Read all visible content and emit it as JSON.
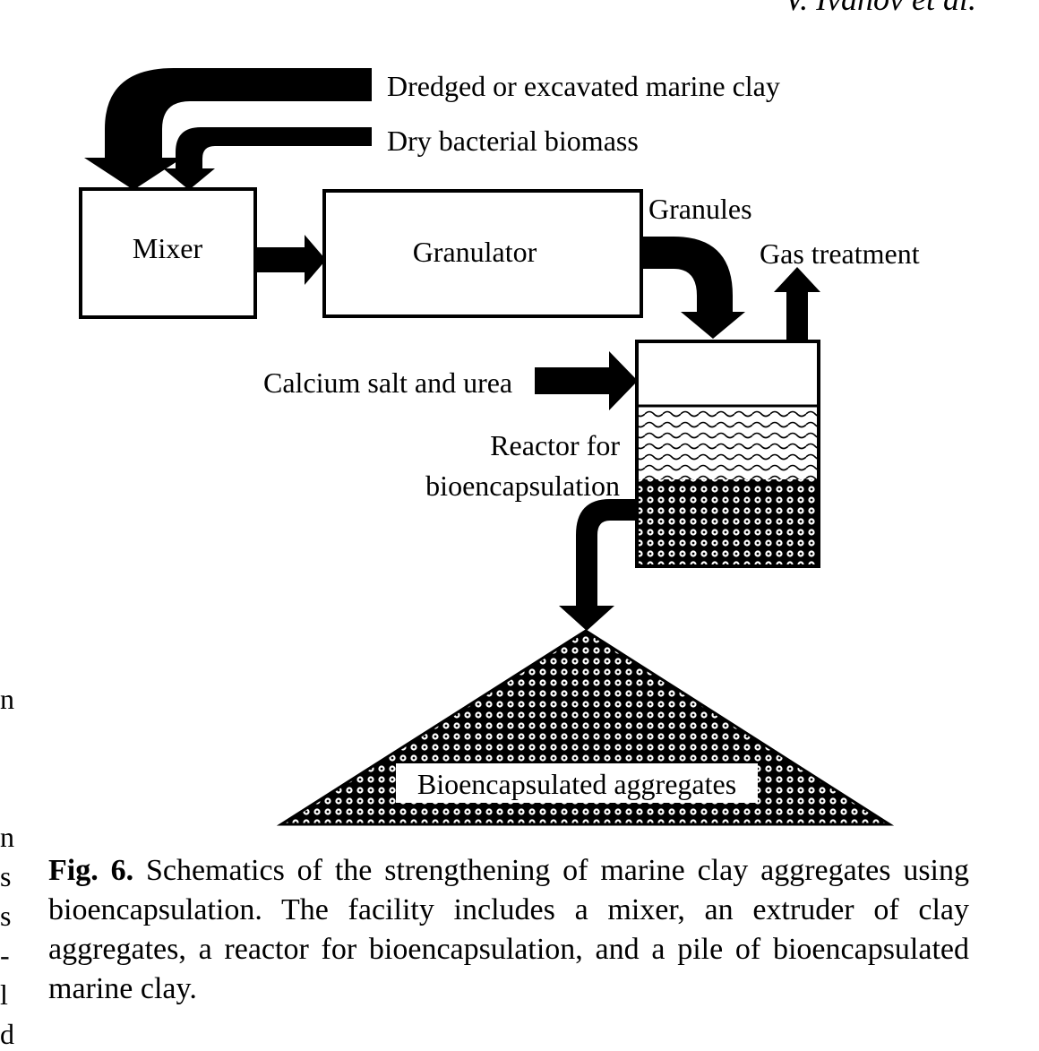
{
  "header": {
    "running_head": "V. Ivanov et al."
  },
  "left_margin_fragments": [
    "n",
    "n",
    "s",
    "s",
    "-",
    "l",
    "d"
  ],
  "diagram": {
    "inputs": {
      "clay": "Dredged or excavated marine clay",
      "biomass": "Dry bacterial biomass",
      "calcium": "Calcium salt and urea"
    },
    "mixer_label": "Mixer",
    "granulator_label": "Granulator",
    "granules_label": "Granules",
    "gas_label": "Gas treatment",
    "reactor_label_line1": "Reactor for",
    "reactor_label_line2": "bioencapsulation",
    "pile_label": "Bioencapsulated aggregates"
  },
  "caption": {
    "fig_label": "Fig. 6.",
    "text": "Schematics of the strengthening of marine clay aggregates using bioencapsulation. The facility includes a mixer, an extruder of clay aggregates, a reactor for bioencapsulation, and a pile of bioencapsulated marine clay."
  },
  "colors": {
    "ink": "#000000",
    "paper": "#ffffff"
  }
}
